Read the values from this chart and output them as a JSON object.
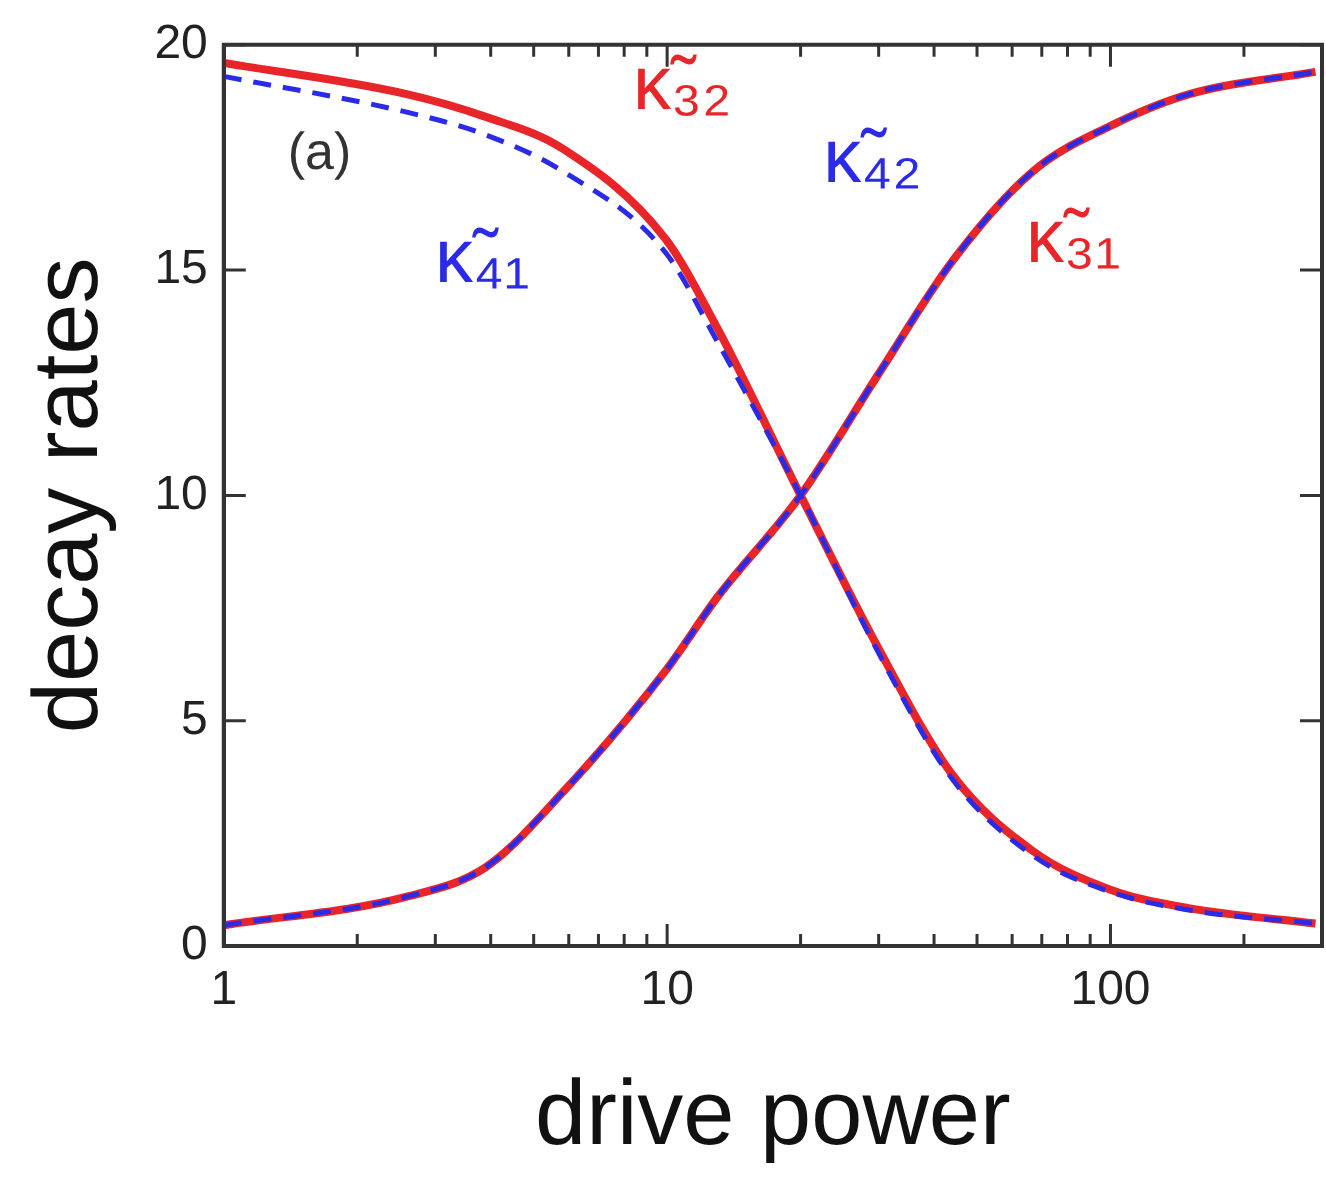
{
  "chart_data": {
    "type": "line",
    "xlabel": "drive power",
    "ylabel": "decay rates",
    "log": "x",
    "xlim": [
      1,
      300
    ],
    "xticks": [
      1,
      {
        "value": 2,
        "label": null
      },
      {
        "value": 3,
        "label": null
      },
      {
        "value": 4,
        "label": null
      },
      {
        "value": 5,
        "label": null
      },
      {
        "value": 6,
        "label": null
      },
      {
        "value": 7,
        "label": null
      },
      {
        "value": 8,
        "label": null
      },
      {
        "value": 9,
        "label": null
      },
      10,
      {
        "value": 20,
        "label": null
      },
      {
        "value": 30,
        "label": null
      },
      {
        "value": 40,
        "label": null
      },
      {
        "value": 50,
        "label": null
      },
      {
        "value": 60,
        "label": null
      },
      {
        "value": 70,
        "label": null
      },
      {
        "value": 80,
        "label": null
      },
      {
        "value": 90,
        "label": null
      },
      100,
      {
        "value": 200,
        "label": null
      }
    ],
    "ylim": [
      0,
      20
    ],
    "yticks": [
      0,
      5,
      10,
      15,
      20
    ],
    "grid": false,
    "legend": false,
    "marker": "none",
    "x": [
      1,
      2.6,
      3.9,
      5.8,
      9.9,
      13,
      20,
      30,
      44,
      67,
      100,
      150,
      290
    ],
    "series": [
      {
        "name": "κ̃₃₂",
        "color": "#e8262a",
        "line_style": "solid",
        "values": [
          19.6,
          18.9,
          18.4,
          17.7,
          15.7,
          13.7,
          10,
          6.6,
          3.8,
          2.1,
          1.25,
          0.84,
          0.5
        ]
      },
      {
        "name": "κ̃₄₁",
        "color": "#2a2ae8",
        "line_style": "dashed",
        "values": [
          19.3,
          18.5,
          18.0,
          17.2,
          15.4,
          13.4,
          10,
          6.5,
          3.7,
          2.0,
          1.2,
          0.8,
          0.5
        ]
      },
      {
        "name": "κ̃₄₂",
        "color": "#2a2ae8",
        "line_style": "dashed",
        "values": [
          0.46,
          1.1,
          1.75,
          3.4,
          6.1,
          7.75,
          10,
          12.7,
          15.2,
          17.2,
          18.2,
          18.9,
          19.4
        ]
      },
      {
        "name": "κ̃₃₁",
        "color": "#e8262a",
        "line_style": "solid",
        "values": [
          0.46,
          1.1,
          1.75,
          3.4,
          6.1,
          7.75,
          10,
          12.7,
          15.2,
          17.2,
          18.2,
          18.9,
          19.4
        ]
      }
    ],
    "annotations": [
      "(a)"
    ]
  }
}
